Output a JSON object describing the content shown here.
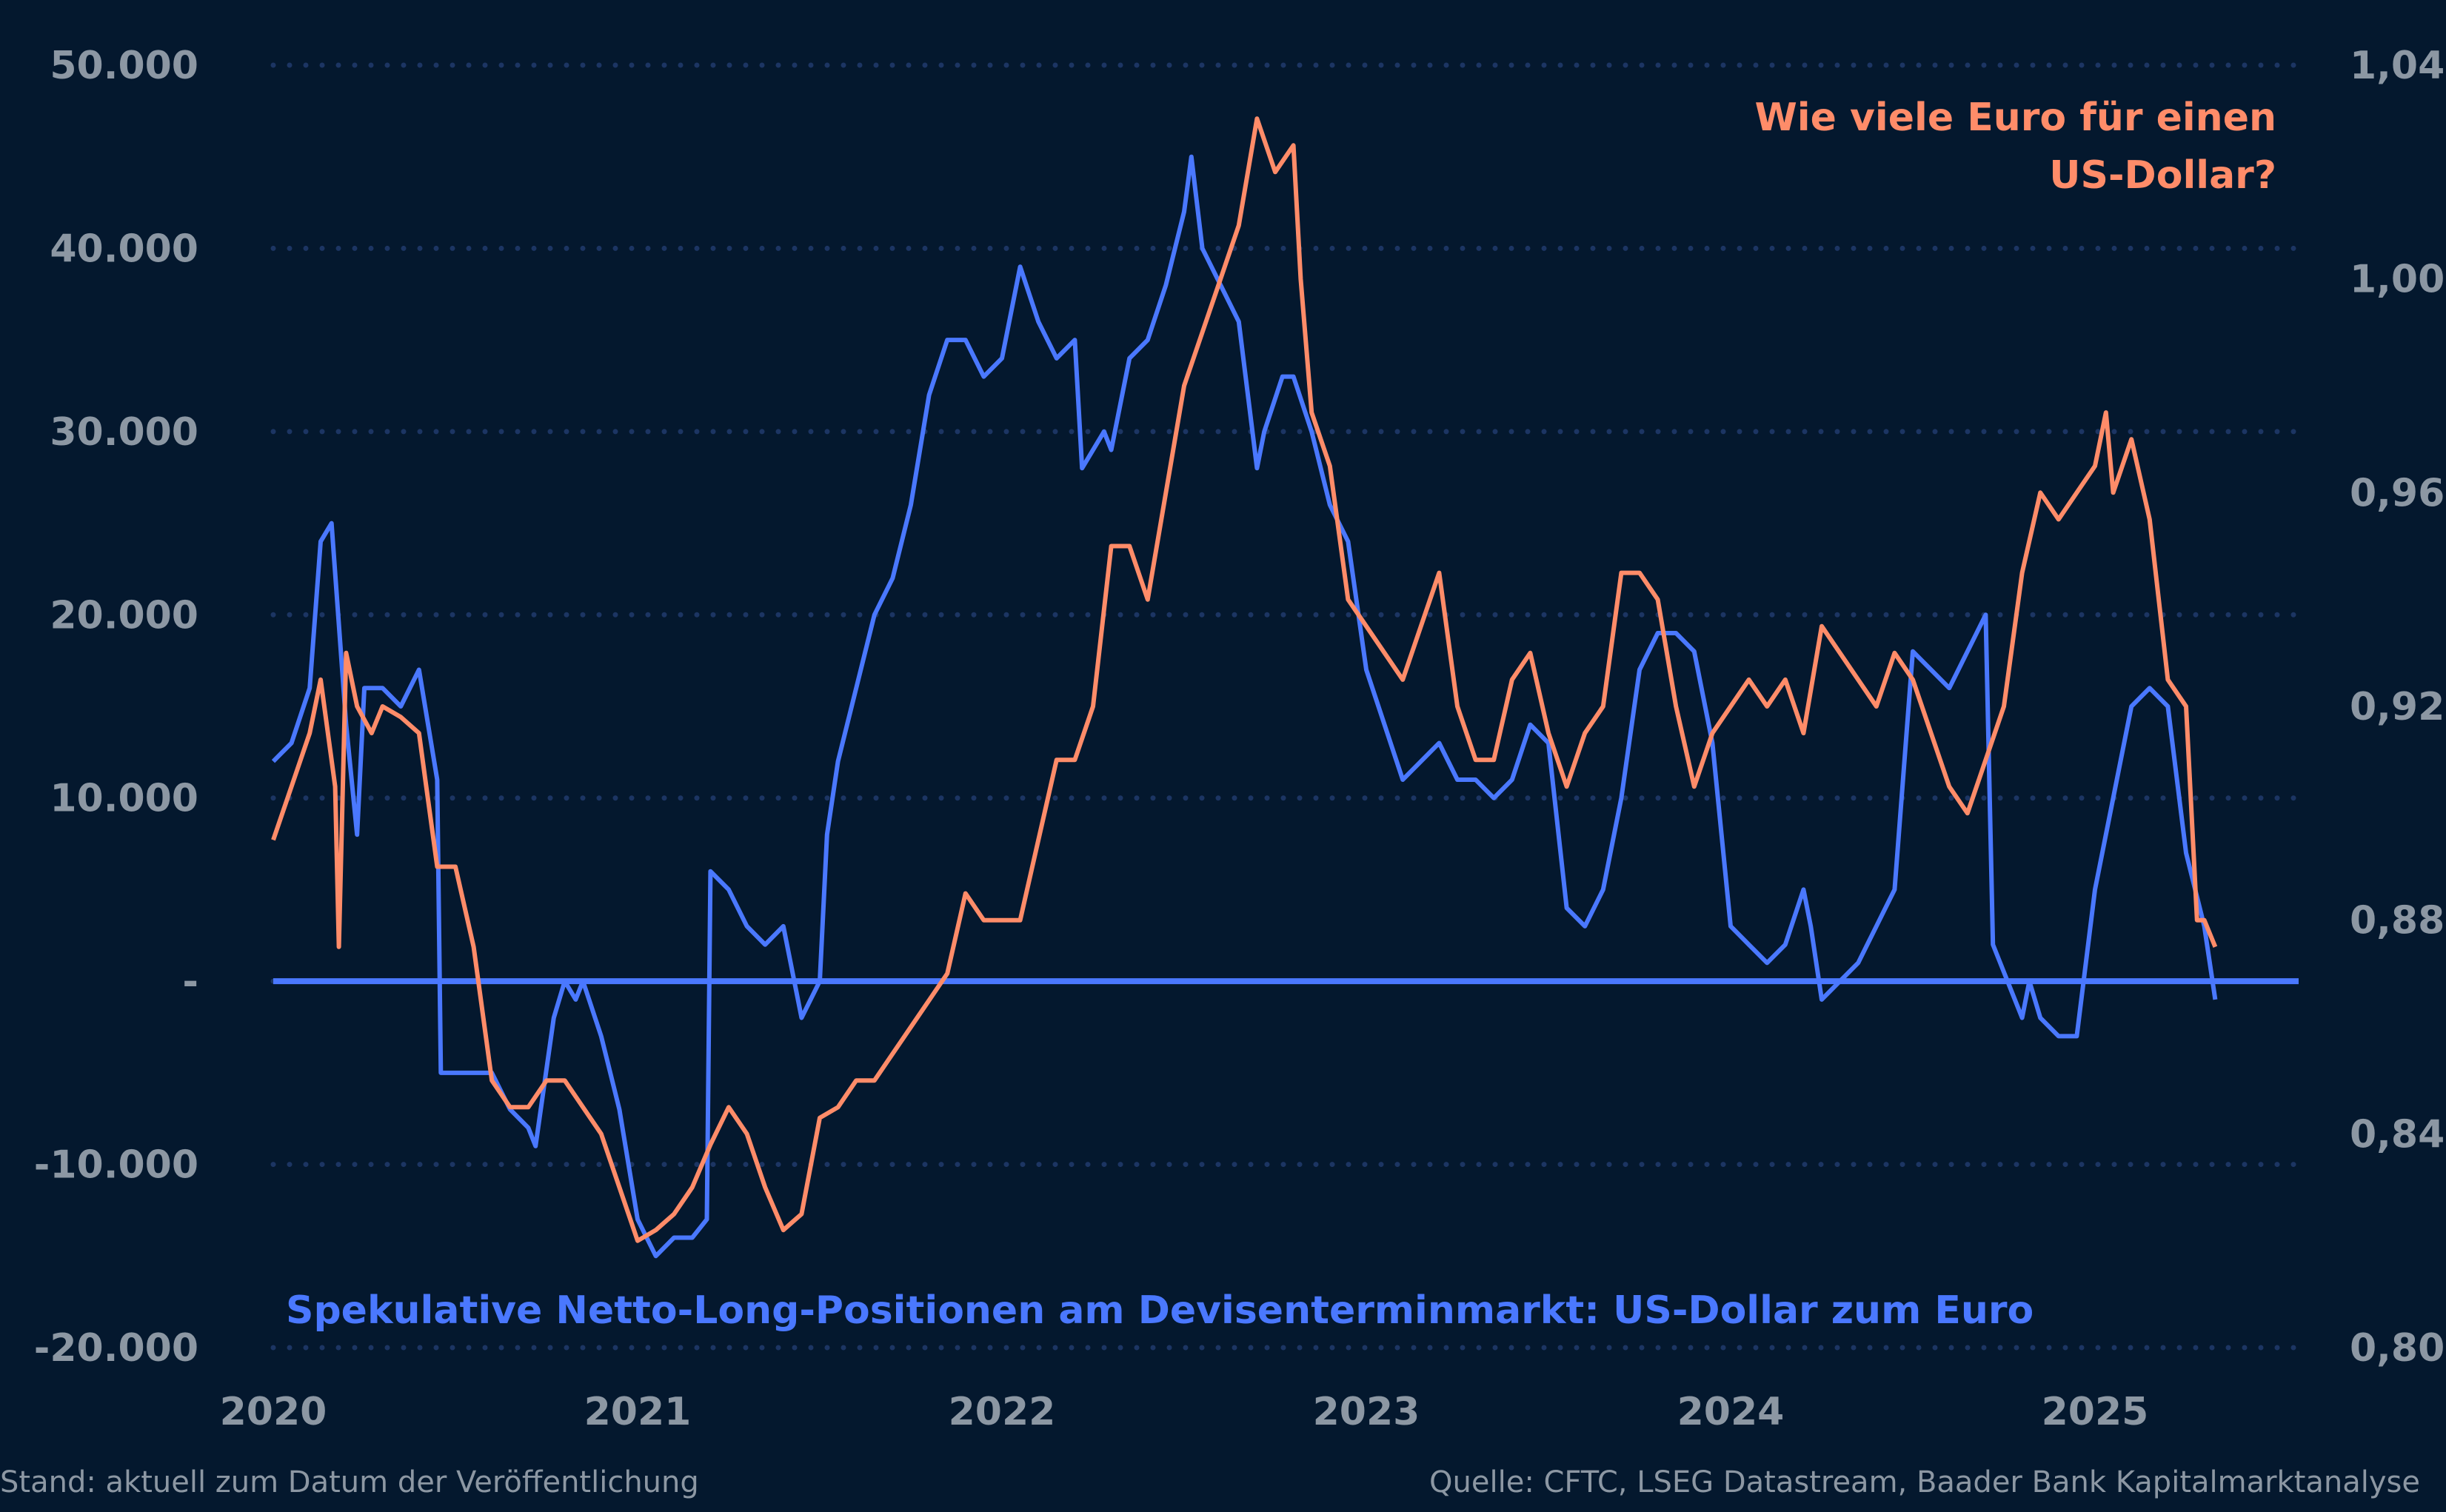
{
  "chart_data": {
    "type": "line",
    "colors": {
      "background": "#04182e",
      "net_long": "#4a78ff",
      "eur_per_usd": "#ff8c69",
      "grid": "#1c3563",
      "ticks": "#8c97a3"
    },
    "grid": "horizontal dotted",
    "x_ticks": [
      "2020",
      "2021",
      "2022",
      "2023",
      "2024",
      "2025"
    ],
    "x_range": [
      2020.0,
      2025.55
    ],
    "left_axis": {
      "ylim": [
        -20000,
        50000
      ],
      "ticks": [
        50000,
        40000,
        30000,
        20000,
        10000,
        0,
        -10000,
        -20000
      ],
      "tick_labels": [
        "50.000",
        "40.000",
        "30.000",
        "20.000",
        "10.000",
        "-",
        "-10.000",
        "-20.000"
      ]
    },
    "right_axis": {
      "ylim": [
        0.8,
        1.04
      ],
      "ticks": [
        1.04,
        1.0,
        0.96,
        0.92,
        0.88,
        0.84,
        0.8
      ],
      "tick_labels": [
        "1,04",
        "1,00",
        "0,96",
        "0,92",
        "0,88",
        "0,84",
        "0,80"
      ]
    },
    "series": [
      {
        "name": "Spekulative Netto-Long-Positionen am Devisenterminmarkt: US-Dollar zum Euro",
        "axis": "left",
        "x": [
          2020.0,
          2020.05,
          2020.1,
          2020.13,
          2020.16,
          2020.2,
          2020.23,
          2020.25,
          2020.3,
          2020.35,
          2020.4,
          2020.45,
          2020.46,
          2020.5,
          2020.6,
          2020.65,
          2020.7,
          2020.72,
          2020.77,
          2020.8,
          2020.83,
          2020.85,
          2020.9,
          2020.95,
          2021.0,
          2021.05,
          2021.1,
          2021.15,
          2021.19,
          2021.2,
          2021.25,
          2021.3,
          2021.35,
          2021.4,
          2021.45,
          2021.5,
          2021.52,
          2021.55,
          2021.6,
          2021.65,
          2021.7,
          2021.75,
          2021.8,
          2021.85,
          2021.9,
          2021.95,
          2022.0,
          2022.05,
          2022.1,
          2022.15,
          2022.2,
          2022.22,
          2022.28,
          2022.3,
          2022.35,
          2022.4,
          2022.45,
          2022.5,
          2022.52,
          2022.55,
          2022.6,
          2022.65,
          2022.7,
          2022.72,
          2022.77,
          2022.8,
          2022.85,
          2022.9,
          2022.95,
          2023.0,
          2023.05,
          2023.1,
          2023.15,
          2023.2,
          2023.25,
          2023.3,
          2023.35,
          2023.4,
          2023.45,
          2023.5,
          2023.55,
          2023.6,
          2023.65,
          2023.7,
          2023.75,
          2023.8,
          2023.85,
          2023.9,
          2023.95,
          2024.0,
          2024.05,
          2024.1,
          2024.15,
          2024.2,
          2024.22,
          2024.25,
          2024.3,
          2024.35,
          2024.4,
          2024.45,
          2024.5,
          2024.55,
          2024.6,
          2024.65,
          2024.7,
          2024.72,
          2024.8,
          2024.82,
          2024.85,
          2024.9,
          2024.95,
          2025.0,
          2025.05,
          2025.1,
          2025.15,
          2025.2,
          2025.25,
          2025.3,
          2025.33
        ],
        "y": [
          12000,
          13000,
          16000,
          24000,
          25000,
          14000,
          8000,
          16000,
          16000,
          15000,
          17000,
          11000,
          -5000,
          -5000,
          -5000,
          -7000,
          -8000,
          -9000,
          -2000,
          0,
          -1000,
          0,
          -3000,
          -7000,
          -13000,
          -15000,
          -14000,
          -14000,
          -13000,
          6000,
          5000,
          3000,
          2000,
          3000,
          -2000,
          0,
          8000,
          12000,
          16000,
          20000,
          22000,
          26000,
          32000,
          35000,
          35000,
          33000,
          34000,
          39000,
          36000,
          34000,
          35000,
          28000,
          30000,
          29000,
          34000,
          35000,
          38000,
          42000,
          45000,
          40000,
          38000,
          36000,
          28000,
          30000,
          33000,
          33000,
          30000,
          26000,
          24000,
          17000,
          14000,
          11000,
          12000,
          13000,
          11000,
          11000,
          10000,
          11000,
          14000,
          13000,
          4000,
          3000,
          5000,
          10000,
          17000,
          19000,
          19000,
          18000,
          13000,
          3000,
          2000,
          1000,
          2000,
          5000,
          3000,
          -1000,
          0,
          1000,
          3000,
          5000,
          18000,
          17000,
          16000,
          18000,
          20000,
          2000,
          -2000,
          0,
          -2000,
          -3000,
          -3000,
          5000,
          10000,
          15000,
          16000,
          15000,
          7000,
          3000,
          -1000
        ]
      },
      {
        "name": "Wie viele Euro für einen US-Dollar?",
        "axis": "right",
        "x": [
          2020.0,
          2020.05,
          2020.1,
          2020.13,
          2020.17,
          2020.18,
          2020.2,
          2020.23,
          2020.27,
          2020.3,
          2020.35,
          2020.4,
          2020.42,
          2020.45,
          2020.5,
          2020.55,
          2020.6,
          2020.65,
          2020.7,
          2020.75,
          2020.8,
          2020.85,
          2020.9,
          2020.95,
          2021.0,
          2021.05,
          2021.1,
          2021.15,
          2021.2,
          2021.25,
          2021.3,
          2021.35,
          2021.4,
          2021.45,
          2021.5,
          2021.55,
          2021.6,
          2021.65,
          2021.7,
          2021.75,
          2021.8,
          2021.85,
          2021.9,
          2021.95,
          2022.0,
          2022.05,
          2022.1,
          2022.15,
          2022.2,
          2022.25,
          2022.3,
          2022.35,
          2022.4,
          2022.45,
          2022.5,
          2022.55,
          2022.6,
          2022.65,
          2022.7,
          2022.75,
          2022.8,
          2022.82,
          2022.85,
          2022.9,
          2022.95,
          2023.0,
          2023.05,
          2023.1,
          2023.15,
          2023.2,
          2023.25,
          2023.3,
          2023.35,
          2023.4,
          2023.45,
          2023.5,
          2023.55,
          2023.6,
          2023.65,
          2023.7,
          2023.75,
          2023.8,
          2023.85,
          2023.9,
          2023.95,
          2024.0,
          2024.05,
          2024.1,
          2024.15,
          2024.2,
          2024.25,
          2024.3,
          2024.35,
          2024.4,
          2024.45,
          2024.5,
          2024.55,
          2024.6,
          2024.65,
          2024.7,
          2024.75,
          2024.8,
          2024.85,
          2024.9,
          2024.95,
          2025.0,
          2025.03,
          2025.05,
          2025.1,
          2025.15,
          2025.2,
          2025.25,
          2025.28,
          2025.3,
          2025.33
        ],
        "y": [
          0.895,
          0.905,
          0.915,
          0.925,
          0.905,
          0.875,
          0.93,
          0.92,
          0.915,
          0.92,
          0.918,
          0.915,
          0.905,
          0.89,
          0.89,
          0.875,
          0.85,
          0.845,
          0.845,
          0.85,
          0.85,
          0.845,
          0.84,
          0.83,
          0.82,
          0.822,
          0.825,
          0.83,
          0.838,
          0.845,
          0.84,
          0.83,
          0.822,
          0.825,
          0.843,
          0.845,
          0.85,
          0.85,
          0.855,
          0.86,
          0.865,
          0.87,
          0.885,
          0.88,
          0.88,
          0.88,
          0.895,
          0.91,
          0.91,
          0.92,
          0.95,
          0.95,
          0.94,
          0.96,
          0.98,
          0.99,
          1.0,
          1.01,
          1.03,
          1.02,
          1.025,
          1.0,
          0.975,
          0.965,
          0.94,
          0.935,
          0.93,
          0.925,
          0.935,
          0.945,
          0.92,
          0.91,
          0.91,
          0.925,
          0.93,
          0.915,
          0.905,
          0.915,
          0.92,
          0.945,
          0.945,
          0.94,
          0.92,
          0.905,
          0.915,
          0.92,
          0.925,
          0.92,
          0.925,
          0.915,
          0.935,
          0.93,
          0.925,
          0.92,
          0.93,
          0.925,
          0.915,
          0.905,
          0.9,
          0.91,
          0.92,
          0.945,
          0.96,
          0.955,
          0.96,
          0.965,
          0.975,
          0.96,
          0.97,
          0.955,
          0.925,
          0.92,
          0.88,
          0.88,
          0.875
        ]
      }
    ],
    "annotations": {
      "orange_title_line1": "Wie viele Euro für einen",
      "orange_title_line2": "US-Dollar?",
      "blue_label": "Spekulative Netto-Long-Positionen am Devisenterminmarkt: US-Dollar zum Euro"
    }
  },
  "footer": {
    "left": "Stand: aktuell zum Datum der Veröffentlichung",
    "right": "Quelle: CFTC, LSEG Datastream, Baader Bank Kapitalmarktanalyse"
  }
}
